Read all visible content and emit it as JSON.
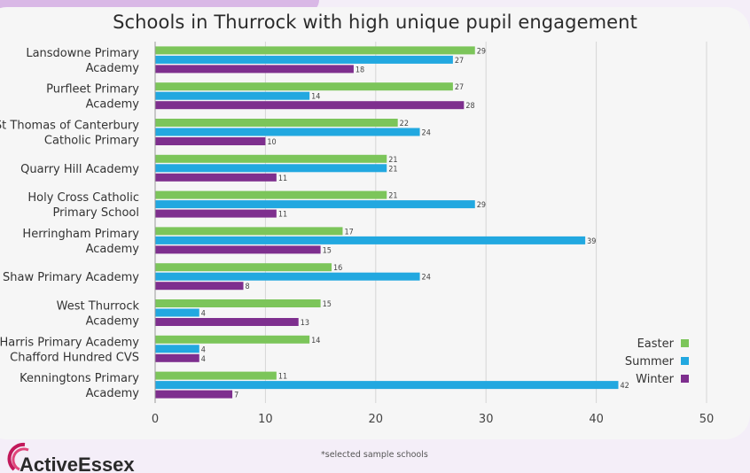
{
  "chart_data": {
    "type": "bar",
    "orientation": "horizontal",
    "title": "Schools in Thurrock with high unique pupil engagement",
    "categories": [
      [
        "Lansdowne Primary",
        "Academy"
      ],
      [
        "Purfleet Primary",
        "Academy"
      ],
      [
        "St Thomas of Canterbury",
        "Catholic Primary"
      ],
      [
        "Quarry Hill Academy"
      ],
      [
        "Holy Cross Catholic",
        "Primary School"
      ],
      [
        "Herringham Primary",
        "Academy"
      ],
      [
        "Shaw Primary Academy"
      ],
      [
        "West Thurrock",
        "Academy"
      ],
      [
        "Harris Primary Academy",
        "Chafford Hundred CVS"
      ],
      [
        "Kenningtons Primary",
        "Academy"
      ]
    ],
    "series": [
      {
        "name": "Easter",
        "color": "#7cc55a",
        "values": [
          29,
          27,
          22,
          21,
          21,
          17,
          16,
          15,
          14,
          11
        ]
      },
      {
        "name": "Summer",
        "color": "#22a8e0",
        "values": [
          27,
          14,
          24,
          21,
          29,
          39,
          24,
          4,
          4,
          42
        ]
      },
      {
        "name": "Winter",
        "color": "#7e2f8e",
        "values": [
          18,
          28,
          10,
          11,
          11,
          15,
          8,
          13,
          4,
          7
        ]
      }
    ],
    "xlim": [
      0,
      50
    ],
    "xticks": [
      0,
      10,
      20,
      30,
      40,
      50
    ],
    "grid": true,
    "legend_position": "bottom-right",
    "xlabel": "",
    "ylabel": ""
  },
  "footnote": "*selected sample schools",
  "logo_text": "ActiveEssex"
}
